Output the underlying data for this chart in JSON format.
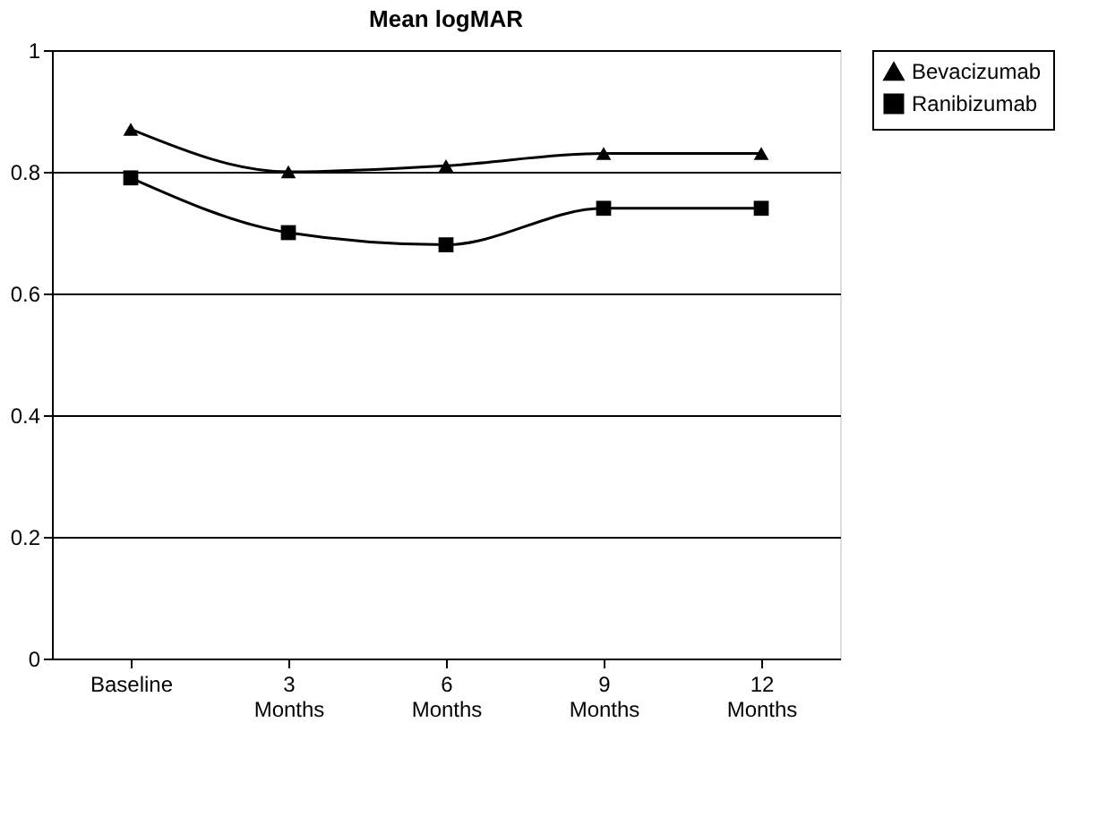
{
  "chart_data": {
    "type": "line",
    "title": "Mean logMAR",
    "categories": [
      "Baseline",
      "3 Months",
      "6 Months",
      "9 Months",
      "12 Months"
    ],
    "series": [
      {
        "name": "Bevacizumab",
        "color": "#000000",
        "marker": "triangle",
        "values": [
          0.87,
          0.8,
          0.81,
          0.83,
          0.83
        ]
      },
      {
        "name": "Ranibizumab",
        "color": "#000000",
        "marker": "square",
        "values": [
          0.79,
          0.7,
          0.68,
          0.74,
          0.74
        ]
      }
    ],
    "ylim": [
      0,
      1
    ],
    "yticks": [
      0,
      0.2,
      0.4,
      0.6,
      0.8,
      1
    ],
    "grid": "y",
    "legend": "right",
    "line_style": "solid"
  }
}
